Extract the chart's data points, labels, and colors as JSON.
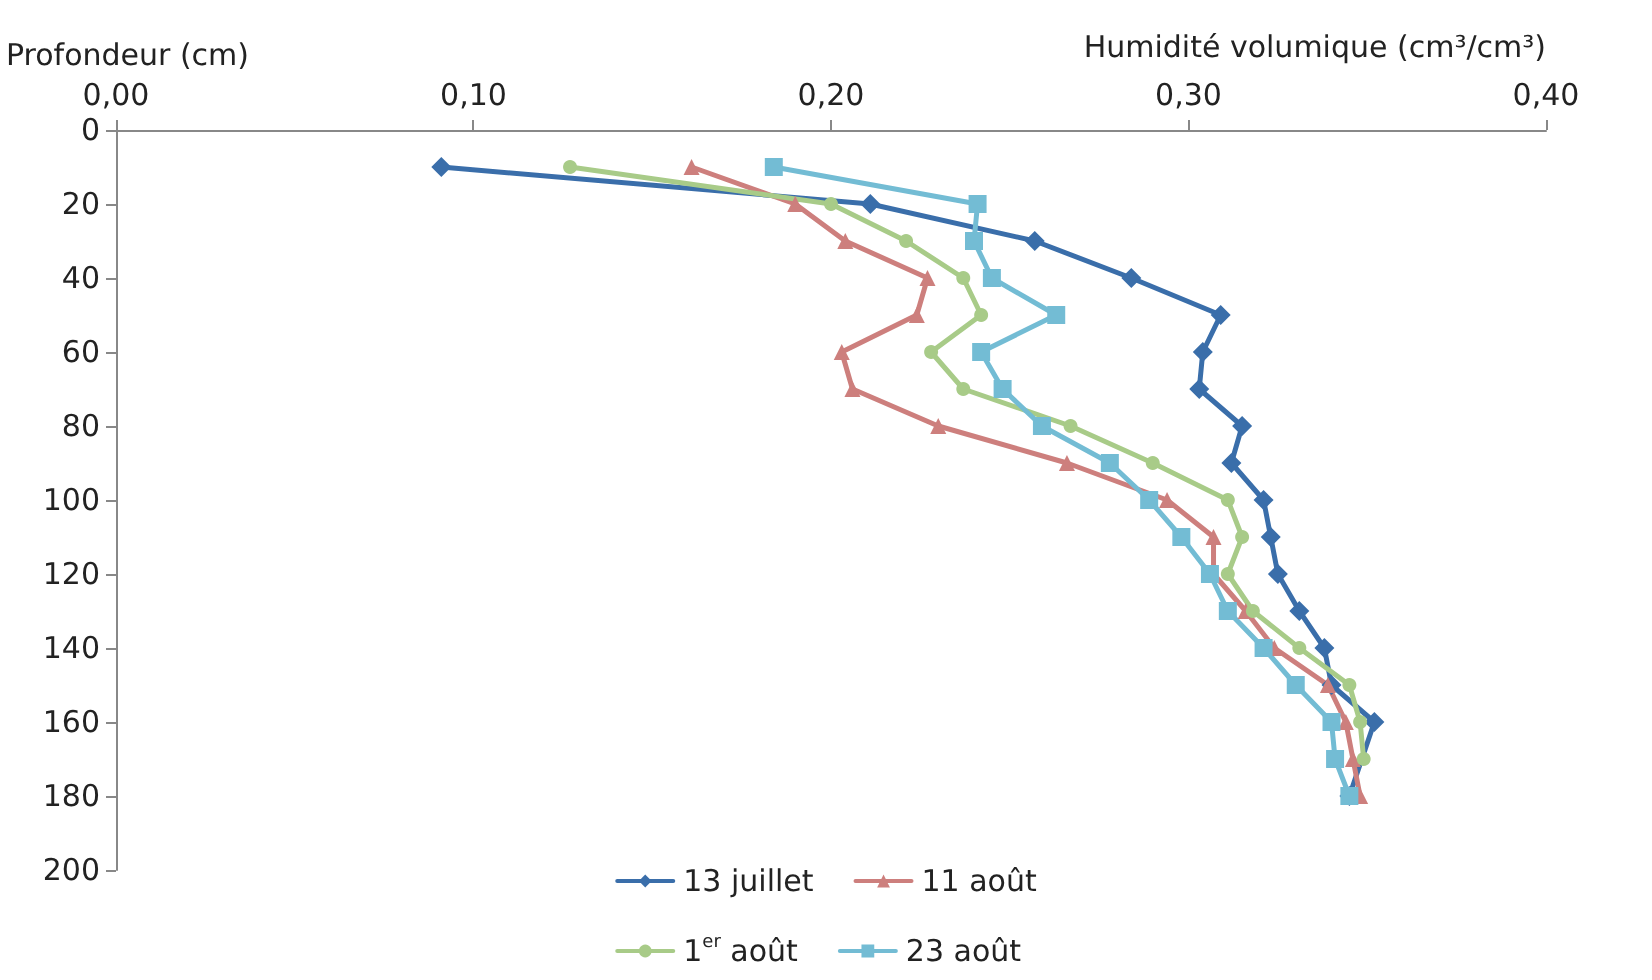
{
  "chart_data": {
    "type": "line",
    "xlabel": "Humidité volumique (cm³/cm³)",
    "ylabel": "Profondeur (cm)",
    "xlim": [
      0,
      0.4
    ],
    "xticks": [
      {
        "value": 0,
        "label": "0,00"
      },
      {
        "value": 0.1,
        "label": "0,10"
      },
      {
        "value": 0.2,
        "label": "0,20"
      },
      {
        "value": 0.3,
        "label": "0,30"
      },
      {
        "value": 0.4,
        "label": "0,40"
      }
    ],
    "ylim": [
      200,
      0
    ],
    "yticks": [
      0,
      20,
      40,
      60,
      80,
      100,
      120,
      140,
      160,
      180,
      200
    ],
    "grid": false,
    "legend": "bottom",
    "line_style": "solid",
    "series": [
      {
        "name": "13 juillet",
        "color": "#3a6eaa",
        "marker": "diamond",
        "x": [
          0.091,
          0.211,
          0.257,
          0.284,
          0.309,
          0.304,
          0.303,
          0.315,
          0.312,
          0.321,
          0.323,
          0.325,
          0.331,
          0.338,
          0.34,
          0.352,
          null,
          0.345
        ],
        "values": [
          10,
          20,
          30,
          40,
          50,
          60,
          70,
          80,
          90,
          100,
          110,
          120,
          130,
          140,
          150,
          160,
          null,
          180
        ]
      },
      {
        "name": "11 août",
        "color": "#cd7f7d",
        "marker": "triangle",
        "x": [
          0.161,
          0.19,
          0.204,
          0.227,
          0.224,
          0.203,
          0.206,
          0.23,
          0.266,
          0.294,
          0.307,
          0.307,
          0.316,
          0.324,
          0.339,
          0.344,
          0.346,
          0.348
        ],
        "values": [
          10,
          20,
          30,
          40,
          50,
          60,
          70,
          80,
          90,
          100,
          110,
          120,
          130,
          140,
          150,
          160,
          170,
          180
        ]
      },
      {
        "name": "1$^{er}$ août",
        "color": "#a8cb88",
        "marker": "circle",
        "x": [
          0.127,
          0.2,
          0.221,
          0.237,
          0.242,
          0.228,
          0.237,
          0.267,
          0.29,
          0.311,
          0.315,
          0.311,
          0.318,
          0.331,
          0.345,
          0.348,
          0.349,
          null
        ],
        "values": [
          10,
          20,
          30,
          40,
          50,
          60,
          70,
          80,
          90,
          100,
          110,
          120,
          130,
          140,
          150,
          160,
          170,
          null
        ]
      },
      {
        "name": "23 août",
        "color": "#73bcd4",
        "marker": "square",
        "x": [
          0.184,
          0.241,
          0.24,
          0.245,
          0.263,
          0.242,
          0.248,
          0.259,
          0.278,
          0.289,
          0.298,
          0.306,
          0.311,
          0.321,
          0.33,
          0.34,
          0.341,
          0.345
        ],
        "values": [
          10,
          20,
          30,
          40,
          50,
          60,
          70,
          80,
          90,
          100,
          110,
          120,
          130,
          140,
          150,
          160,
          170,
          180
        ]
      }
    ]
  }
}
